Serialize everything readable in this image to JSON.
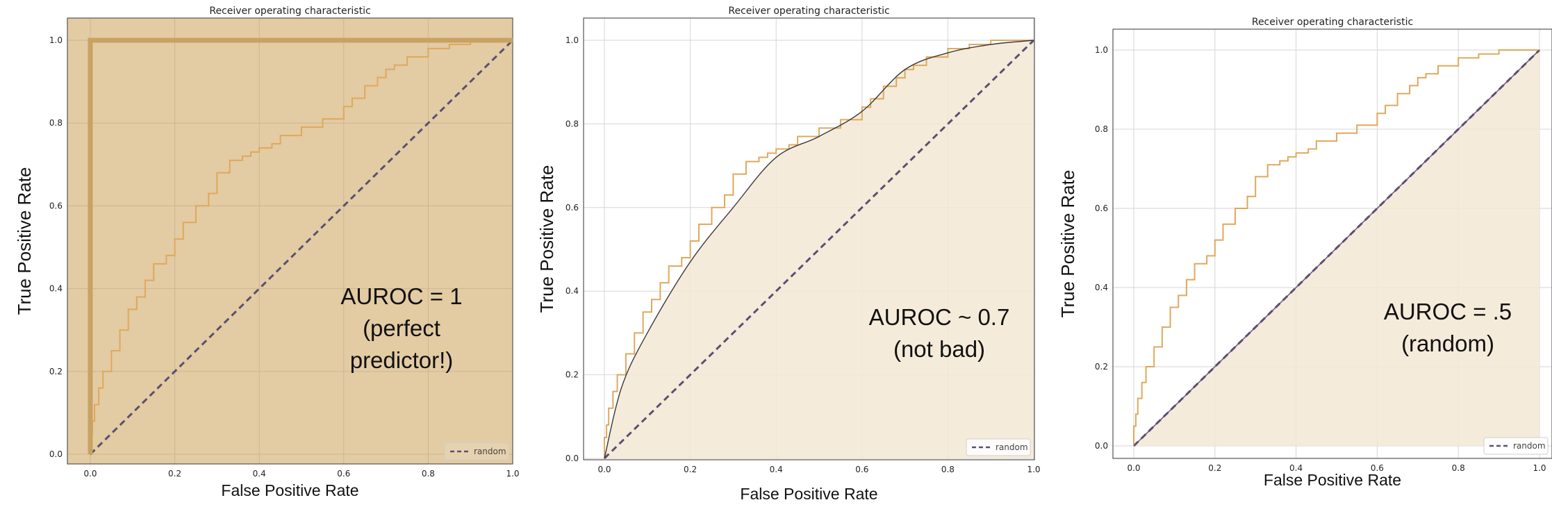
{
  "chart_data": [
    {
      "type": "line",
      "title": "Receiver operating characteristic",
      "xlabel": "False Positive Rate",
      "ylabel": "True Positive Rate",
      "xlim": [
        0,
        1
      ],
      "ylim": [
        0,
        1
      ],
      "xticks": [
        "0.0",
        "0.2",
        "0.4",
        "0.6",
        "0.8",
        "1.0"
      ],
      "yticks": [
        "0.0",
        "0.2",
        "0.4",
        "0.6",
        "0.8",
        "1.0"
      ],
      "grid": true,
      "legend": {
        "position": "bottom-right",
        "entries": [
          "random"
        ]
      },
      "annotation": [
        "AUROC = 1",
        "(perfect",
        "predictor!)"
      ],
      "shaded": "perfect",
      "colors": {
        "roc": "#e0a85c",
        "random": "#5b4f72",
        "fill": "#e3cba3",
        "border": "#c9a263"
      },
      "series": [
        {
          "name": "random",
          "style": "dashed",
          "x": [
            0,
            1
          ],
          "y": [
            0,
            1
          ]
        },
        {
          "style": "solid",
          "x": [
            0,
            0.005,
            0.01,
            0.02,
            0.03,
            0.05,
            0.07,
            0.09,
            0.11,
            0.13,
            0.15,
            0.18,
            0.2,
            0.22,
            0.25,
            0.28,
            0.3,
            0.33,
            0.36,
            0.38,
            0.4,
            0.43,
            0.45,
            0.5,
            0.55,
            0.6,
            0.62,
            0.65,
            0.68,
            0.7,
            0.72,
            0.75,
            0.8,
            0.85,
            0.9,
            0.95,
            1.0
          ],
          "y": [
            0,
            0.05,
            0.08,
            0.12,
            0.16,
            0.2,
            0.25,
            0.3,
            0.35,
            0.38,
            0.42,
            0.46,
            0.48,
            0.52,
            0.56,
            0.6,
            0.63,
            0.68,
            0.71,
            0.72,
            0.73,
            0.74,
            0.75,
            0.77,
            0.79,
            0.81,
            0.84,
            0.86,
            0.89,
            0.91,
            0.93,
            0.94,
            0.96,
            0.98,
            0.99,
            1.0,
            1.0
          ]
        },
        {
          "style": "solid",
          "x": [
            0,
            0,
            1
          ],
          "y": [
            0,
            1,
            1
          ]
        }
      ]
    },
    {
      "type": "line",
      "title": "Receiver operating characteristic",
      "xlabel": "False Positive Rate",
      "ylabel": "True Positive Rate",
      "xlim": [
        0,
        1
      ],
      "ylim": [
        0,
        1
      ],
      "xticks": [
        "0.0",
        "0.2",
        "0.4",
        "0.6",
        "0.8",
        "1.0"
      ],
      "yticks": [
        "0.0",
        "0.2",
        "0.4",
        "0.6",
        "0.8",
        "1.0"
      ],
      "grid": true,
      "legend": {
        "position": "bottom-right",
        "entries": [
          "random"
        ]
      },
      "annotation": [
        "AUROC ~ 0.7",
        "(not bad)"
      ],
      "shaded": "curve",
      "colors": {
        "roc": "#e0a85c",
        "random": "#5b4f72",
        "fill": "#f3e7d3",
        "smooth": "#3a3a3a"
      },
      "series": [
        {
          "name": "random",
          "style": "dashed",
          "x": [
            0,
            1
          ],
          "y": [
            0,
            1
          ]
        },
        {
          "style": "solid",
          "x": [
            0,
            0.005,
            0.01,
            0.02,
            0.03,
            0.05,
            0.07,
            0.09,
            0.11,
            0.13,
            0.15,
            0.18,
            0.2,
            0.22,
            0.25,
            0.28,
            0.3,
            0.33,
            0.36,
            0.38,
            0.4,
            0.43,
            0.45,
            0.5,
            0.55,
            0.6,
            0.62,
            0.65,
            0.68,
            0.7,
            0.72,
            0.75,
            0.8,
            0.85,
            0.9,
            0.95,
            1.0
          ],
          "y": [
            0,
            0.05,
            0.08,
            0.12,
            0.16,
            0.2,
            0.25,
            0.3,
            0.35,
            0.38,
            0.42,
            0.46,
            0.48,
            0.52,
            0.56,
            0.6,
            0.63,
            0.68,
            0.71,
            0.72,
            0.73,
            0.74,
            0.75,
            0.77,
            0.79,
            0.81,
            0.84,
            0.86,
            0.89,
            0.91,
            0.93,
            0.94,
            0.96,
            0.98,
            0.99,
            1.0,
            1.0
          ]
        },
        {
          "style": "smooth",
          "x": [
            0,
            0.04,
            0.1,
            0.2,
            0.3,
            0.4,
            0.5,
            0.6,
            0.7,
            0.8,
            0.9,
            1.0
          ],
          "y": [
            0,
            0.17,
            0.3,
            0.47,
            0.6,
            0.72,
            0.77,
            0.83,
            0.93,
            0.97,
            0.99,
            1.0
          ]
        }
      ]
    },
    {
      "type": "line",
      "title": "Receiver operating characteristic",
      "xlabel": "False Positive Rate",
      "ylabel": "True Positive Rate",
      "xlim": [
        0,
        1
      ],
      "ylim": [
        0,
        1
      ],
      "xticks": [
        "0.0",
        "0.2",
        "0.4",
        "0.6",
        "0.8",
        "1.0"
      ],
      "yticks": [
        "0.0",
        "0.2",
        "0.4",
        "0.6",
        "0.8",
        "1.0"
      ],
      "grid": true,
      "legend": {
        "position": "bottom-right",
        "entries": [
          "random"
        ]
      },
      "annotation": [
        "AUROC = .5",
        "(random)"
      ],
      "shaded": "diagonal",
      "colors": {
        "roc": "#e0a85c",
        "random": "#5b4f72",
        "fill": "#f3e7d3"
      },
      "series": [
        {
          "name": "random",
          "style": "dashed",
          "x": [
            0,
            1
          ],
          "y": [
            0,
            1
          ]
        },
        {
          "style": "solid",
          "x": [
            0,
            0.005,
            0.01,
            0.02,
            0.03,
            0.05,
            0.07,
            0.09,
            0.11,
            0.13,
            0.15,
            0.18,
            0.2,
            0.22,
            0.25,
            0.28,
            0.3,
            0.33,
            0.36,
            0.38,
            0.4,
            0.43,
            0.45,
            0.5,
            0.55,
            0.6,
            0.62,
            0.65,
            0.68,
            0.7,
            0.72,
            0.75,
            0.8,
            0.85,
            0.9,
            0.95,
            1.0
          ],
          "y": [
            0,
            0.05,
            0.08,
            0.12,
            0.16,
            0.2,
            0.25,
            0.3,
            0.35,
            0.38,
            0.42,
            0.46,
            0.48,
            0.52,
            0.56,
            0.6,
            0.63,
            0.68,
            0.71,
            0.72,
            0.73,
            0.74,
            0.75,
            0.77,
            0.79,
            0.81,
            0.84,
            0.86,
            0.89,
            0.91,
            0.93,
            0.94,
            0.96,
            0.98,
            0.99,
            1.0,
            1.0
          ]
        },
        {
          "style": "solid",
          "x": [
            0,
            1
          ],
          "y": [
            0,
            1
          ]
        }
      ]
    }
  ]
}
